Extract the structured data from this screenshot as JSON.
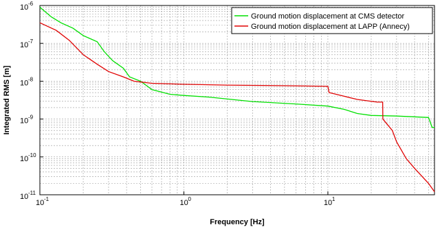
{
  "chart_data": {
    "type": "line",
    "xlabel": "Frequency [Hz]",
    "ylabel": "Integrated RMS [m]",
    "xscale": "log",
    "yscale": "log",
    "xlim": [
      0.1,
      55
    ],
    "ylim": [
      1e-11,
      1e-06
    ],
    "grid": true,
    "legend_position": "top-right",
    "x_ticks": [
      {
        "value": 0.1,
        "label": "10",
        "exp": "-1"
      },
      {
        "value": 1,
        "label": "10",
        "exp": "0"
      },
      {
        "value": 10,
        "label": "10",
        "exp": "1"
      }
    ],
    "y_ticks": [
      {
        "value": 1e-11,
        "label": "10",
        "exp": "-11"
      },
      {
        "value": 1e-10,
        "label": "10",
        "exp": "-10"
      },
      {
        "value": 1e-09,
        "label": "10",
        "exp": "-9"
      },
      {
        "value": 1e-08,
        "label": "10",
        "exp": "-8"
      },
      {
        "value": 1e-07,
        "label": "10",
        "exp": "-7"
      },
      {
        "value": 1e-06,
        "label": "10",
        "exp": "-6"
      }
    ],
    "series": [
      {
        "name": "Ground motion displacement at CMS detector",
        "color": "#00e000",
        "points": [
          [
            0.1,
            9e-07
          ],
          [
            0.12,
            5e-07
          ],
          [
            0.14,
            3.5e-07
          ],
          [
            0.17,
            2.5e-07
          ],
          [
            0.2,
            1.6e-07
          ],
          [
            0.25,
            1.1e-07
          ],
          [
            0.28,
            6e-08
          ],
          [
            0.32,
            3.5e-08
          ],
          [
            0.38,
            2.2e-08
          ],
          [
            0.42,
            1.3e-08
          ],
          [
            0.5,
            1e-08
          ],
          [
            0.6,
            6e-09
          ],
          [
            0.8,
            4.5e-09
          ],
          [
            1.0,
            4.2e-09
          ],
          [
            1.5,
            3.8e-09
          ],
          [
            3,
            2.9e-09
          ],
          [
            6,
            2.5e-09
          ],
          [
            10,
            2.2e-09
          ],
          [
            13,
            1.8e-09
          ],
          [
            16,
            1.4e-09
          ],
          [
            20,
            1.25e-09
          ],
          [
            30,
            1.2e-09
          ],
          [
            50,
            1.1e-09
          ],
          [
            53,
            6e-10
          ],
          [
            55,
            6e-10
          ]
        ]
      },
      {
        "name": "Ground motion displacement at LAPP (Annecy)",
        "color": "#e00000",
        "points": [
          [
            0.1,
            3.5e-07
          ],
          [
            0.13,
            2.2e-07
          ],
          [
            0.16,
            1.2e-07
          ],
          [
            0.2,
            5e-08
          ],
          [
            0.25,
            2.8e-08
          ],
          [
            0.3,
            1.8e-08
          ],
          [
            0.38,
            1.3e-08
          ],
          [
            0.45,
            1e-08
          ],
          [
            0.6,
            8.8e-09
          ],
          [
            1,
            8.3e-09
          ],
          [
            2,
            7.9e-09
          ],
          [
            5,
            7.6e-09
          ],
          [
            10,
            7.3e-09
          ],
          [
            10.2,
            5e-09
          ],
          [
            13,
            4e-09
          ],
          [
            16,
            3.3e-09
          ],
          [
            22,
            2.8e-09
          ],
          [
            24,
            2.8e-09
          ],
          [
            24.1,
            1e-09
          ],
          [
            28,
            5e-10
          ],
          [
            30,
            2.5e-10
          ],
          [
            35,
            9e-11
          ],
          [
            40,
            5e-11
          ],
          [
            50,
            2e-11
          ],
          [
            55,
            1.2e-11
          ]
        ]
      }
    ]
  }
}
